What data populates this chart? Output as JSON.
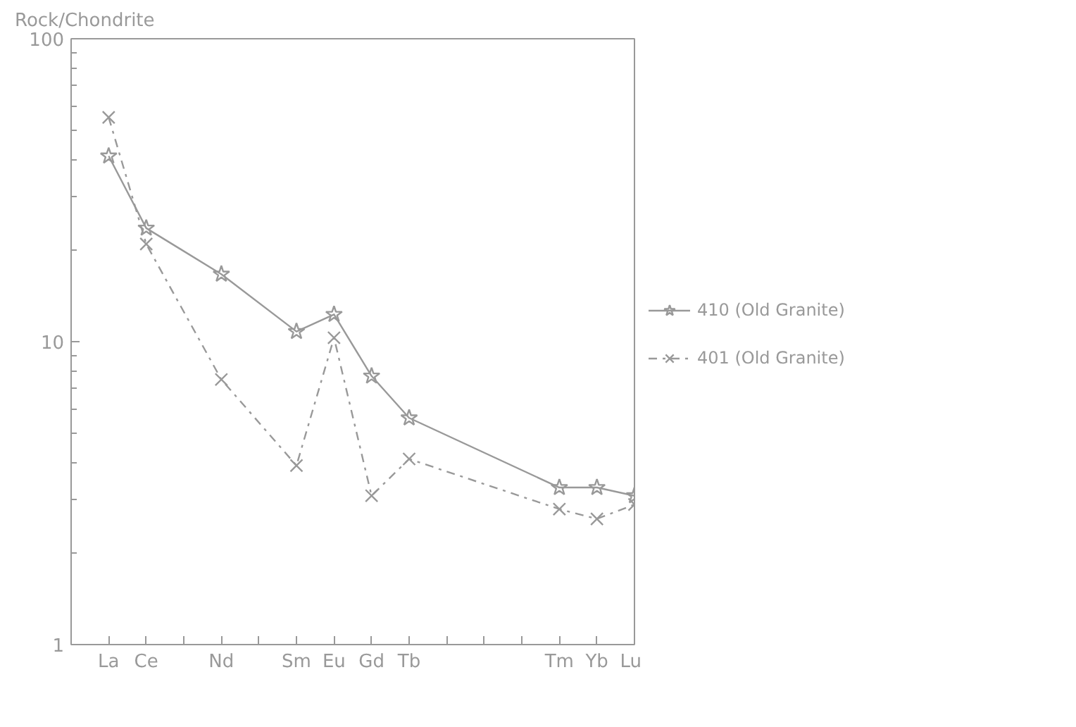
{
  "chart_data": {
    "type": "line",
    "ylabel": "Rock/Chondrite",
    "categories": [
      "La",
      "Ce",
      null,
      "Nd",
      null,
      "Sm",
      "Eu",
      "Gd",
      "Tb",
      null,
      null,
      null,
      "Tm",
      "Yb",
      "Lu"
    ],
    "log": "y",
    "ylim": [
      1,
      100
    ],
    "yticks": [
      1,
      {
        "value": 2,
        "label": null
      },
      {
        "value": 3,
        "label": null
      },
      {
        "value": 4,
        "label": null
      },
      {
        "value": 5,
        "label": null
      },
      {
        "value": 6,
        "label": null
      },
      {
        "value": 7,
        "label": null
      },
      {
        "value": 8,
        "label": null
      },
      {
        "value": 9,
        "label": null
      },
      10,
      {
        "value": 20,
        "label": null
      },
      {
        "value": 30,
        "label": null
      },
      {
        "value": 40,
        "label": null
      },
      {
        "value": 50,
        "label": null
      },
      {
        "value": 60,
        "label": null
      },
      {
        "value": 70,
        "label": null
      },
      {
        "value": 80,
        "label": null
      },
      {
        "value": 90,
        "label": null
      },
      100
    ],
    "grid": false,
    "legend": "right",
    "series": [
      {
        "name": "410 (Old Granite)",
        "color": "#999999",
        "marker": "star",
        "line_style": "solid",
        "values": [
          41,
          23.7,
          null,
          16.7,
          null,
          10.8,
          12.3,
          7.7,
          5.6,
          null,
          null,
          null,
          3.3,
          3.3,
          3.1
        ]
      },
      {
        "name": "401 (Old Granite)",
        "color": "#999999",
        "marker": "cross",
        "line_style": "dashed",
        "values": [
          55,
          21,
          null,
          7.5,
          null,
          3.9,
          10.3,
          3.1,
          4.1,
          null,
          null,
          null,
          2.8,
          2.6,
          2.9
        ]
      }
    ]
  }
}
